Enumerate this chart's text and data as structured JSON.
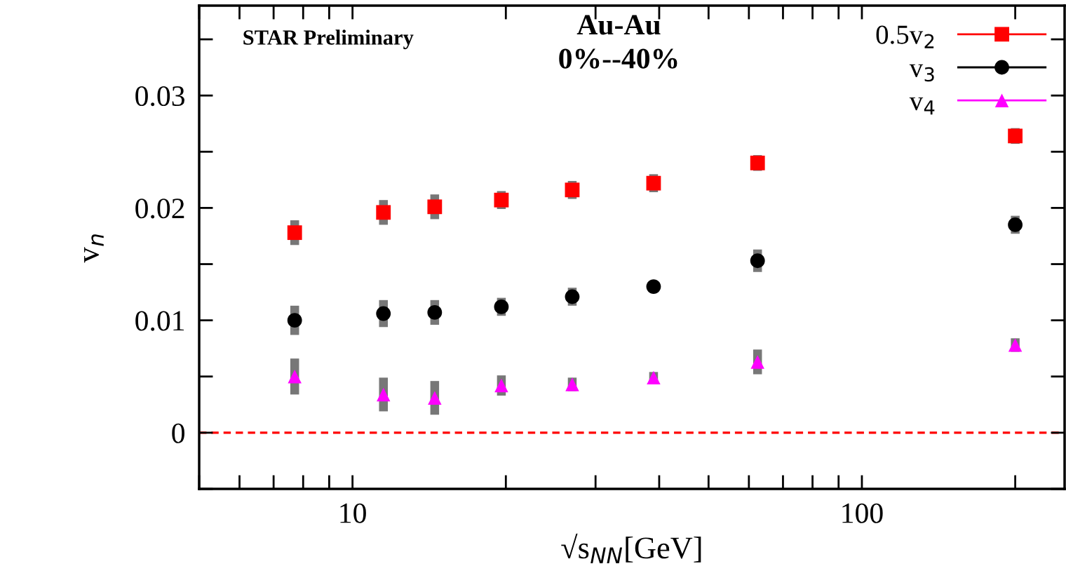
{
  "chart_data": {
    "type": "scatter",
    "xlabel": "√s$_{NN}$[GeV]",
    "ylabel": "v$_{n}$",
    "log": "x",
    "x": [
      7.7,
      11.5,
      14.5,
      19.6,
      27,
      39,
      62.4,
      200
    ],
    "xlim": [
      5,
      250
    ],
    "xticks": [
      10,
      100
    ],
    "ylim": [
      -0.005,
      0.038
    ],
    "yticks": [
      0,
      0.01,
      0.02,
      0.03
    ],
    "series": [
      {
        "name": "0.5v$_{2}$",
        "color": "#ff0000",
        "marker": "square",
        "values": [
          0.0178,
          0.0196,
          0.0201,
          0.0207,
          0.0216,
          0.0222,
          0.024,
          0.0264
        ],
        "errors": [
          0.0011,
          0.0011,
          0.0011,
          0.0008,
          0.0008,
          0.0008,
          0.0007,
          0.0007
        ]
      },
      {
        "name": "v$_{3}$",
        "color": "#000000",
        "marker": "circle",
        "values": [
          0.01,
          0.0106,
          0.0107,
          0.0112,
          0.0121,
          0.013,
          0.0153,
          0.0185
        ],
        "errors": [
          0.0013,
          0.0012,
          0.0011,
          0.0008,
          0.0008,
          0.0005,
          0.001,
          0.0008
        ]
      },
      {
        "name": "v$_{4}$",
        "color": "#ff00ff",
        "marker": "triangle",
        "values": [
          0.005,
          0.0034,
          0.0031,
          0.0042,
          0.0043,
          0.0049,
          0.0063,
          0.0078
        ],
        "errors": [
          0.0016,
          0.0015,
          0.0015,
          0.0009,
          0.0006,
          0.0005,
          0.0011,
          0.0006
        ]
      }
    ],
    "ref_lines": [
      {
        "axis": "y",
        "value": 0,
        "color": "#ff0000",
        "line_style": "dashed"
      }
    ],
    "annotations": [
      "STAR Preliminary",
      "Au-Au",
      "0%--40%"
    ],
    "legend": "top right",
    "grid": false
  }
}
